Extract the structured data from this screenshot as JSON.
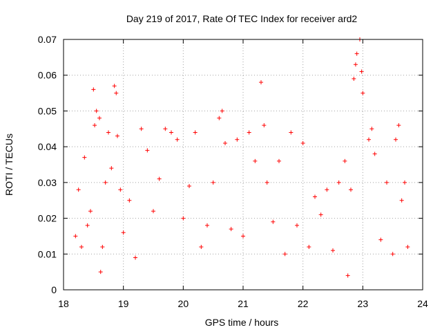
{
  "chart_data": {
    "type": "scatter",
    "title": "Day 219 of 2017, Rate Of TEC Index for receiver ard2",
    "xlabel": "GPS time / hours",
    "ylabel": "ROTI / TECUs",
    "xlim": [
      18,
      24
    ],
    "ylim": [
      0,
      0.07
    ],
    "x_ticks": [
      "18",
      "19",
      "20",
      "21",
      "22",
      "23",
      "24"
    ],
    "y_ticks": [
      "0",
      "0.01",
      "0.02",
      "0.03",
      "0.04",
      "0.05",
      "0.06",
      "0.07"
    ],
    "grid": true,
    "marker": "plus",
    "color": "#ff0000",
    "series": [
      {
        "x_range": [
          18.2,
          23.75
        ],
        "points": [
          [
            18.2,
            0.015
          ],
          [
            18.25,
            0.028
          ],
          [
            18.3,
            0.012
          ],
          [
            18.35,
            0.037
          ],
          [
            18.4,
            0.018
          ],
          [
            18.45,
            0.022
          ],
          [
            18.5,
            0.056
          ],
          [
            18.52,
            0.046
          ],
          [
            18.55,
            0.05
          ],
          [
            18.6,
            0.048
          ],
          [
            18.62,
            0.005
          ],
          [
            18.65,
            0.012
          ],
          [
            18.7,
            0.03
          ],
          [
            18.75,
            0.044
          ],
          [
            18.8,
            0.034
          ],
          [
            18.85,
            0.057
          ],
          [
            18.88,
            0.055
          ],
          [
            18.9,
            0.043
          ],
          [
            18.95,
            0.028
          ],
          [
            19.0,
            0.016
          ],
          [
            19.1,
            0.025
          ],
          [
            19.2,
            0.009
          ],
          [
            19.3,
            0.045
          ],
          [
            19.4,
            0.039
          ],
          [
            19.5,
            0.022
          ],
          [
            19.6,
            0.031
          ],
          [
            19.7,
            0.045
          ],
          [
            19.8,
            0.044
          ],
          [
            19.9,
            0.042
          ],
          [
            20.0,
            0.02
          ],
          [
            20.1,
            0.029
          ],
          [
            20.2,
            0.044
          ],
          [
            20.3,
            0.012
          ],
          [
            20.4,
            0.018
          ],
          [
            20.5,
            0.03
          ],
          [
            20.6,
            0.048
          ],
          [
            20.65,
            0.05
          ],
          [
            20.7,
            0.041
          ],
          [
            20.8,
            0.017
          ],
          [
            20.9,
            0.042
          ],
          [
            21.0,
            0.015
          ],
          [
            21.1,
            0.044
          ],
          [
            21.2,
            0.036
          ],
          [
            21.3,
            0.058
          ],
          [
            21.35,
            0.046
          ],
          [
            21.4,
            0.03
          ],
          [
            21.5,
            0.019
          ],
          [
            21.6,
            0.036
          ],
          [
            21.7,
            0.01
          ],
          [
            21.8,
            0.044
          ],
          [
            21.9,
            0.018
          ],
          [
            22.0,
            0.041
          ],
          [
            22.1,
            0.012
          ],
          [
            22.2,
            0.026
          ],
          [
            22.3,
            0.021
          ],
          [
            22.4,
            0.028
          ],
          [
            22.5,
            0.011
          ],
          [
            22.6,
            0.03
          ],
          [
            22.7,
            0.036
          ],
          [
            22.75,
            0.004
          ],
          [
            22.8,
            0.028
          ],
          [
            22.85,
            0.059
          ],
          [
            22.88,
            0.063
          ],
          [
            22.9,
            0.066
          ],
          [
            22.95,
            0.07
          ],
          [
            22.98,
            0.061
          ],
          [
            23.0,
            0.055
          ],
          [
            23.1,
            0.042
          ],
          [
            23.15,
            0.045
          ],
          [
            23.2,
            0.038
          ],
          [
            23.3,
            0.014
          ],
          [
            23.4,
            0.03
          ],
          [
            23.5,
            0.01
          ],
          [
            23.55,
            0.042
          ],
          [
            23.6,
            0.046
          ],
          [
            23.65,
            0.025
          ],
          [
            23.7,
            0.03
          ],
          [
            23.75,
            0.012
          ]
        ]
      }
    ]
  }
}
